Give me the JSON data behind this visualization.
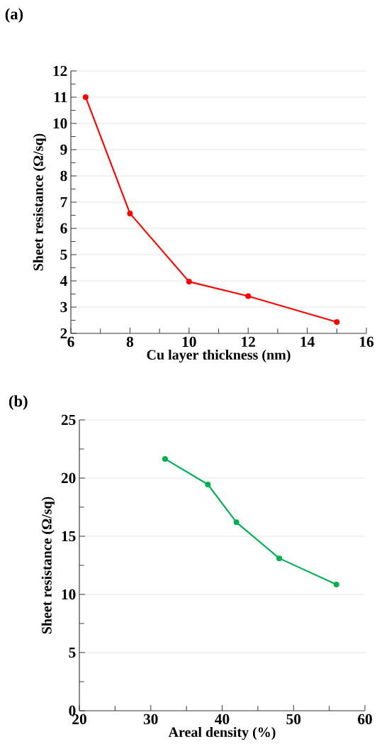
{
  "chart_data": [
    {
      "type": "line",
      "title": "(a)",
      "xlabel": "Cu layer thickness (nm)",
      "ylabel": "Sheet resistance (Ω/sq)",
      "x": [
        6.5,
        8,
        10,
        12,
        15
      ],
      "series": [
        {
          "color": "#ff0000",
          "values": [
            11.0,
            6.57,
            3.97,
            3.42,
            2.43
          ]
        }
      ],
      "xlim": [
        6,
        16
      ],
      "ylim": [
        2,
        12
      ],
      "xticks": [
        6,
        8,
        10,
        12,
        14,
        16
      ],
      "yticks": [
        2,
        3,
        4,
        5,
        6,
        7,
        8,
        9,
        10,
        11,
        12
      ],
      "grid": "y",
      "marker": "circle",
      "line_style": "solid"
    },
    {
      "type": "line",
      "title": "(b)",
      "xlabel": "Areal density (%)",
      "ylabel": "Sheet resistance (Ω/sq)",
      "x": [
        32,
        38,
        42,
        48,
        56
      ],
      "series": [
        {
          "color": "#00b050",
          "values": [
            21.65,
            19.45,
            16.2,
            13.1,
            10.85
          ]
        }
      ],
      "xlim": [
        20,
        60
      ],
      "ylim": [
        0,
        25
      ],
      "xticks": [
        20,
        30,
        40,
        50,
        60
      ],
      "yticks": [
        0,
        5,
        10,
        15,
        20,
        25
      ],
      "grid": "y",
      "marker": "circle",
      "line_style": "solid"
    }
  ]
}
